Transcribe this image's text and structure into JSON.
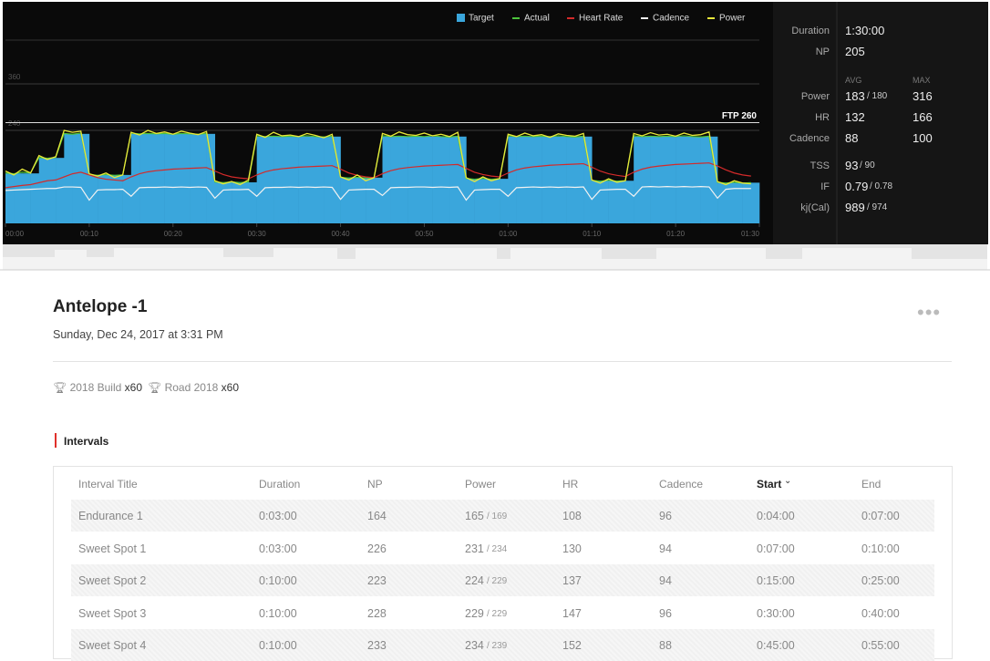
{
  "chart_data": {
    "type": "line",
    "legend": [
      "Target",
      "Actual",
      "Heart Rate",
      "Cadence",
      "Power"
    ],
    "xlim": [
      0,
      90
    ],
    "xticks": [
      {
        "value": 0,
        "label": "00:00"
      },
      {
        "value": 10,
        "label": "00:10"
      },
      {
        "value": 20,
        "label": "00:20"
      },
      {
        "value": 30,
        "label": "00:30"
      },
      {
        "value": 40,
        "label": "00:40"
      },
      {
        "value": 50,
        "label": "00:50"
      },
      {
        "value": 60,
        "label": "01:00"
      },
      {
        "value": 70,
        "label": "01:10"
      },
      {
        "value": 80,
        "label": "01:20"
      },
      {
        "value": 90,
        "label": "01:30"
      }
    ],
    "ylim": [
      0,
      480
    ],
    "yticks": [
      240,
      360
    ],
    "ftp": {
      "value": 260,
      "label": "FTP 260"
    },
    "x": [
      0,
      1,
      2,
      3,
      4,
      5,
      6,
      7,
      8,
      9,
      10,
      11,
      12,
      13,
      14,
      15,
      16,
      17,
      18,
      19,
      20,
      21,
      22,
      23,
      24,
      25,
      26,
      27,
      28,
      29,
      30,
      31,
      32,
      33,
      34,
      35,
      36,
      37,
      38,
      39,
      40,
      41,
      42,
      43,
      44,
      45,
      46,
      47,
      48,
      49,
      50,
      51,
      52,
      53,
      54,
      55,
      56,
      57,
      58,
      59,
      60,
      61,
      62,
      63,
      64,
      65,
      66,
      67,
      68,
      69,
      70,
      71,
      72,
      73,
      74,
      75,
      76,
      77,
      78,
      79,
      80,
      81,
      82,
      83,
      84,
      85,
      86,
      87,
      88,
      89
    ],
    "series": [
      {
        "name": "Target",
        "color": "#3aa6dc",
        "values": [
          129,
          129,
          129,
          129,
          169,
          169,
          169,
          231,
          231,
          231,
          125,
          125,
          125,
          125,
          125,
          231,
          231,
          231,
          231,
          231,
          231,
          231,
          231,
          231,
          231,
          106,
          106,
          106,
          106,
          106,
          224,
          224,
          224,
          224,
          224,
          224,
          224,
          224,
          224,
          224,
          118,
          118,
          118,
          118,
          118,
          224,
          224,
          224,
          224,
          224,
          224,
          224,
          224,
          224,
          224,
          115,
          115,
          115,
          115,
          115,
          224,
          224,
          224,
          224,
          224,
          224,
          224,
          224,
          224,
          224,
          110,
          110,
          110,
          110,
          110,
          224,
          224,
          224,
          224,
          224,
          224,
          224,
          224,
          224,
          224,
          105,
          105,
          105,
          105,
          105
        ]
      },
      {
        "name": "Actual",
        "color": "#4cc43c",
        "values": [
          130,
          128,
          132,
          130,
          170,
          168,
          170,
          232,
          230,
          233,
          126,
          124,
          126,
          124,
          125,
          233,
          231,
          232,
          231,
          232,
          230,
          232,
          231,
          230,
          232,
          107,
          105,
          107,
          105,
          107,
          226,
          224,
          225,
          224,
          225,
          224,
          226,
          224,
          223,
          225,
          119,
          117,
          119,
          117,
          118,
          226,
          224,
          225,
          224,
          225,
          224,
          226,
          224,
          223,
          225,
          116,
          114,
          116,
          114,
          115,
          226,
          224,
          225,
          224,
          225,
          224,
          226,
          224,
          223,
          225,
          111,
          109,
          111,
          109,
          110,
          226,
          224,
          225,
          224,
          225,
          224,
          226,
          224,
          223,
          225,
          106,
          104,
          106,
          104,
          105
        ]
      },
      {
        "name": "Heart Rate",
        "color": "#d42a2a",
        "values": [
          92,
          95,
          98,
          100,
          105,
          110,
          112,
          120,
          128,
          132,
          125,
          118,
          114,
          112,
          110,
          120,
          128,
          133,
          136,
          138,
          140,
          141,
          142,
          143,
          144,
          135,
          126,
          120,
          117,
          115,
          125,
          133,
          138,
          141,
          143,
          145,
          146,
          147,
          148,
          149,
          140,
          130,
          124,
          120,
          118,
          128,
          136,
          141,
          144,
          146,
          148,
          149,
          150,
          151,
          152,
          142,
          132,
          126,
          122,
          120,
          130,
          138,
          143,
          146,
          148,
          150,
          151,
          152,
          153,
          154,
          145,
          135,
          128,
          124,
          121,
          132,
          140,
          145,
          148,
          150,
          152,
          153,
          154,
          155,
          156,
          148,
          138,
          130,
          125,
          122
        ]
      },
      {
        "name": "Cadence",
        "color": "#f2f2f2",
        "values": [
          85,
          86,
          87,
          88,
          89,
          90,
          90,
          94,
          94,
          93,
          60,
          86,
          87,
          87,
          88,
          70,
          92,
          93,
          93,
          94,
          93,
          94,
          93,
          94,
          93,
          65,
          86,
          87,
          87,
          88,
          70,
          92,
          93,
          93,
          94,
          93,
          94,
          93,
          94,
          93,
          62,
          86,
          87,
          88,
          88,
          72,
          92,
          93,
          93,
          94,
          94,
          93,
          94,
          93,
          94,
          60,
          86,
          87,
          88,
          88,
          70,
          92,
          93,
          94,
          93,
          94,
          93,
          94,
          93,
          94,
          62,
          86,
          87,
          88,
          88,
          70,
          94,
          95,
          94,
          95,
          94,
          95,
          94,
          95,
          94,
          65,
          88,
          90,
          90,
          90
        ]
      },
      {
        "name": "Power",
        "color": "#e8e83a",
        "values": [
          135,
          125,
          140,
          130,
          175,
          165,
          172,
          240,
          235,
          238,
          128,
          122,
          130,
          118,
          125,
          235,
          228,
          240,
          232,
          236,
          230,
          238,
          233,
          229,
          237,
          110,
          102,
          108,
          100,
          112,
          230,
          222,
          235,
          226,
          228,
          224,
          232,
          227,
          221,
          230,
          120,
          112,
          125,
          110,
          118,
          232,
          225,
          236,
          229,
          227,
          233,
          226,
          230,
          224,
          235,
          118,
          108,
          120,
          110,
          116,
          230,
          224,
          233,
          226,
          229,
          222,
          231,
          227,
          225,
          232,
          112,
          104,
          115,
          106,
          110,
          232,
          226,
          234,
          228,
          230,
          225,
          233,
          227,
          229,
          236,
          108,
          100,
          110,
          104,
          102
        ]
      }
    ]
  },
  "stats": {
    "duration_label": "Duration",
    "duration": "1:30:00",
    "np_label": "NP",
    "np": "205",
    "avg_label": "AVG",
    "max_label": "MAX",
    "rows": [
      {
        "label": "Power",
        "avg": "183",
        "target": "/ 180",
        "max": "316"
      },
      {
        "label": "HR",
        "avg": "132",
        "max": "166"
      },
      {
        "label": "Cadence",
        "avg": "88",
        "max": "100"
      }
    ],
    "totals": [
      {
        "label": "TSS",
        "value": "93",
        "target": "/ 90"
      },
      {
        "label": "IF",
        "value": "0.79",
        "target": "/ 0.78"
      },
      {
        "label": "kj(Cal)",
        "value": "989",
        "target": "/ 974"
      }
    ]
  },
  "header": {
    "title": "Antelope -1",
    "date": "Sunday, Dec 24, 2017 at 3:31 PM",
    "tags": [
      {
        "name": "2018 Build",
        "count": "x60"
      },
      {
        "name": "Road 2018",
        "count": "x60"
      }
    ]
  },
  "section": "Intervals",
  "table": {
    "columns": [
      "Interval Title",
      "Duration",
      "NP",
      "Power",
      "HR",
      "Cadence",
      "Start",
      "End"
    ],
    "rows": [
      [
        "Endurance 1",
        "0:03:00",
        "164",
        [
          "165",
          "/ 169"
        ],
        "108",
        "96",
        "0:04:00",
        "0:07:00"
      ],
      [
        "Sweet Spot 1",
        "0:03:00",
        "226",
        [
          "231",
          "/ 234"
        ],
        "130",
        "94",
        "0:07:00",
        "0:10:00"
      ],
      [
        "Sweet Spot 2",
        "0:10:00",
        "223",
        [
          "224",
          "/ 229"
        ],
        "137",
        "94",
        "0:15:00",
        "0:25:00"
      ],
      [
        "Sweet Spot 3",
        "0:10:00",
        "228",
        [
          "229",
          "/ 229"
        ],
        "147",
        "96",
        "0:30:00",
        "0:40:00"
      ],
      [
        "Sweet Spot 4",
        "0:10:00",
        "233",
        [
          "234",
          "/ 239"
        ],
        "152",
        "88",
        "0:45:00",
        "0:55:00"
      ]
    ]
  }
}
